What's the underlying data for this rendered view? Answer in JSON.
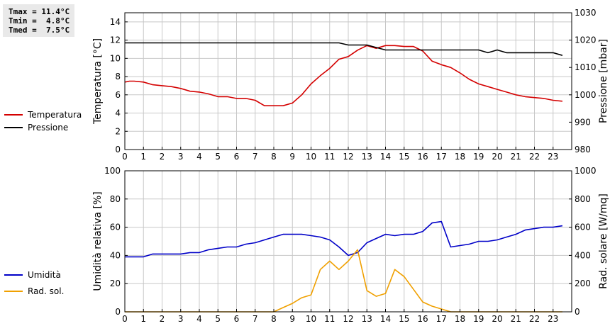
{
  "stats": {
    "tmax": "Tmax = 11.4°C",
    "tmin": "Tmin =  4.8°C",
    "tmed": "Tmed =  7.5°C"
  },
  "colors": {
    "temperature": "#d40000",
    "pressure": "#000000",
    "humidity": "#0000c8",
    "radiation": "#f0a000",
    "grid": "#c8c8c8"
  },
  "legend_top": [
    {
      "label": "Temperatura",
      "color": "#d40000"
    },
    {
      "label": "Pressione",
      "color": "#000000"
    }
  ],
  "legend_bottom": [
    {
      "label": "Umidità",
      "color": "#0000c8"
    },
    {
      "label": "Rad. sol.",
      "color": "#f0a000"
    }
  ],
  "chart_data": [
    {
      "type": "line",
      "ylabel": "Temperatura [°C]",
      "y2label": "Pressione [mbar]",
      "ylim": [
        0,
        15
      ],
      "yticks": [
        0,
        2,
        4,
        6,
        8,
        10,
        12,
        14
      ],
      "y2lim": [
        980,
        1030
      ],
      "y2ticks": [
        980,
        990,
        1000,
        1010,
        1020,
        1030
      ],
      "xlim": [
        0,
        24
      ],
      "xticks": [
        0,
        1,
        2,
        3,
        4,
        5,
        6,
        7,
        8,
        9,
        10,
        11,
        12,
        13,
        14,
        15,
        16,
        17,
        18,
        19,
        20,
        21,
        22,
        23
      ],
      "grid": true,
      "series": [
        {
          "name": "Temperatura",
          "axis": "left",
          "color": "#d40000",
          "x": [
            0,
            0.25,
            0.5,
            1,
            1.5,
            2,
            2.5,
            3,
            3.5,
            4,
            4.5,
            5,
            5.5,
            6,
            6.5,
            7,
            7.5,
            8,
            8.5,
            9,
            9.5,
            10,
            10.5,
            11,
            11.5,
            12,
            12.5,
            13,
            13.5,
            14,
            14.5,
            15,
            15.5,
            16,
            16.5,
            17,
            17.5,
            18,
            18.5,
            19,
            19.5,
            20,
            20.5,
            21,
            21.5,
            22,
            22.5,
            23,
            23.5
          ],
          "y": [
            7.4,
            7.5,
            7.5,
            7.4,
            7.1,
            7.0,
            6.9,
            6.7,
            6.4,
            6.3,
            6.1,
            5.8,
            5.8,
            5.6,
            5.6,
            5.4,
            4.8,
            4.8,
            4.8,
            5.1,
            6.0,
            7.2,
            8.1,
            8.9,
            9.9,
            10.2,
            10.9,
            11.4,
            11.1,
            11.4,
            11.4,
            11.3,
            11.3,
            10.8,
            9.7,
            9.3,
            9.0,
            8.4,
            7.7,
            7.2,
            6.9,
            6.6,
            6.3,
            6.0,
            5.8,
            5.7,
            5.6,
            5.4,
            5.3
          ]
        },
        {
          "name": "Pressione",
          "axis": "right",
          "color": "#000000",
          "x": [
            0,
            11.5,
            12,
            13,
            14,
            15,
            16,
            19,
            19.5,
            20,
            20.5,
            23,
            23.5
          ],
          "y": [
            1019.0,
            1019.0,
            1018.2,
            1018.2,
            1016.4,
            1016.4,
            1016.4,
            1016.4,
            1015.4,
            1016.4,
            1015.4,
            1015.4,
            1014.4
          ]
        }
      ]
    },
    {
      "type": "line",
      "ylabel": "Umidità relativa [%]",
      "y2label": "Rad. solare [W/mq]",
      "ylim": [
        0,
        100
      ],
      "yticks": [
        0,
        20,
        40,
        60,
        80,
        100
      ],
      "y2lim": [
        0,
        1000
      ],
      "y2ticks": [
        0,
        200,
        400,
        600,
        800,
        1000
      ],
      "xlim": [
        0,
        24
      ],
      "xticks": [
        0,
        1,
        2,
        3,
        4,
        5,
        6,
        7,
        8,
        9,
        10,
        11,
        12,
        13,
        14,
        15,
        16,
        17,
        18,
        19,
        20,
        21,
        22,
        23
      ],
      "grid": true,
      "series": [
        {
          "name": "Umidità",
          "axis": "left",
          "color": "#0000c8",
          "x": [
            0,
            1,
            1.5,
            2,
            3,
            3.5,
            4,
            4.5,
            5,
            5.5,
            6,
            6.5,
            7,
            7.5,
            8,
            8.5,
            9,
            9.5,
            10,
            10.5,
            11,
            11.5,
            12,
            12.5,
            13,
            13.5,
            14,
            14.5,
            15,
            15.5,
            16,
            16.5,
            17,
            17.5,
            18,
            18.5,
            19,
            19.5,
            20,
            20.5,
            21,
            21.5,
            22,
            22.5,
            23,
            23.5
          ],
          "y": [
            39,
            39,
            41,
            41,
            41,
            42,
            42,
            44,
            45,
            46,
            46,
            48,
            49,
            51,
            53,
            55,
            55,
            55,
            54,
            53,
            51,
            46,
            40,
            42,
            49,
            52,
            55,
            54,
            55,
            55,
            57,
            63,
            64,
            46,
            47,
            48,
            50,
            50,
            51,
            53,
            55,
            58,
            59,
            60,
            60,
            61
          ]
        },
        {
          "name": "Rad. sol.",
          "axis": "right",
          "color": "#f0a000",
          "x": [
            0,
            8,
            8.5,
            9,
            9.5,
            10,
            10.5,
            11,
            11.5,
            12,
            12.5,
            13,
            13.5,
            14,
            14.5,
            15,
            15.5,
            16,
            16.5,
            17,
            17.5,
            23.5
          ],
          "y": [
            0,
            0,
            30,
            60,
            100,
            120,
            300,
            360,
            300,
            360,
            440,
            150,
            110,
            130,
            300,
            250,
            160,
            70,
            40,
            20,
            0,
            0
          ]
        }
      ]
    }
  ]
}
